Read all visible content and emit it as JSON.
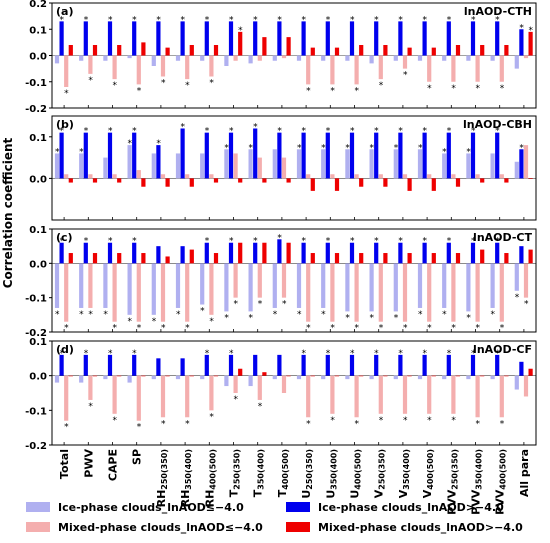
{
  "ylabel": "Correlation coefficient",
  "categories": [
    "Total",
    "PWV",
    "CAPE",
    "SP",
    "RH250(350)",
    "RH350(400)",
    "RH400(500)",
    "T250(350)",
    "T350(400)",
    "T400(500)",
    "U250(350)",
    "U350(400)",
    "U400(500)",
    "V250(350)",
    "V350(400)",
    "V400(500)",
    "PVV250(350)",
    "PVV350(400)",
    "PVV400(500)",
    "All para"
  ],
  "category_labels": [
    {
      "main": "Total",
      "sub": ""
    },
    {
      "main": "PWV",
      "sub": ""
    },
    {
      "main": "CAPE",
      "sub": ""
    },
    {
      "main": "SP",
      "sub": ""
    },
    {
      "main": "RH",
      "sub": "250(350)"
    },
    {
      "main": "RH",
      "sub": "350(400)"
    },
    {
      "main": "RH",
      "sub": "400(500)"
    },
    {
      "main": "T",
      "sub": "250(350)"
    },
    {
      "main": "T",
      "sub": "350(400)"
    },
    {
      "main": "T",
      "sub": "400(500)"
    },
    {
      "main": "U",
      "sub": "250(350)"
    },
    {
      "main": "U",
      "sub": "350(400)"
    },
    {
      "main": "U",
      "sub": "400(500)"
    },
    {
      "main": "V",
      "sub": "250(350)"
    },
    {
      "main": "V",
      "sub": "350(400)"
    },
    {
      "main": "V",
      "sub": "400(500)"
    },
    {
      "main": "PVV",
      "sub": "250(350)"
    },
    {
      "main": "PVV",
      "sub": "350(400)"
    },
    {
      "main": "PVV",
      "sub": "400(500)"
    },
    {
      "main": "All para",
      "sub": ""
    }
  ],
  "legend": [
    {
      "name": "Ice-phase clouds_lnAOD≤−4.0",
      "color": "#b0b0f0"
    },
    {
      "name": "Ice-phase clouds_lnAOD>−4.0",
      "color": "#0000ee"
    },
    {
      "name": "Mixed-phase clouds_lnAOD≤−4.0",
      "color": "#f4aeae"
    },
    {
      "name": "Mixed-phase clouds_lnAOD>−4.0",
      "color": "#ee0000"
    }
  ],
  "chart_data": [
    {
      "type": "bar",
      "panel": "(a)",
      "title": "lnAOD-CTH",
      "ylim": [
        -0.2,
        0.2
      ],
      "yticks": [
        "-0.2",
        "-0.1",
        "0.0",
        "0.1",
        "0.2"
      ],
      "series": [
        {
          "values": [
            -0.03,
            -0.02,
            -0.02,
            -0.01,
            -0.04,
            -0.02,
            -0.02,
            -0.04,
            -0.03,
            -0.02,
            -0.02,
            -0.02,
            -0.02,
            -0.03,
            -0.02,
            -0.02,
            -0.02,
            -0.02,
            -0.02,
            -0.05
          ],
          "stars": [
            false,
            false,
            false,
            false,
            false,
            false,
            false,
            false,
            false,
            false,
            false,
            false,
            false,
            false,
            false,
            false,
            false,
            false,
            false,
            false
          ]
        },
        {
          "values": [
            0.13,
            0.13,
            0.13,
            0.13,
            0.13,
            0.13,
            0.13,
            0.13,
            0.13,
            0.13,
            0.13,
            0.13,
            0.13,
            0.13,
            0.13,
            0.13,
            0.13,
            0.13,
            0.13,
            0.1
          ],
          "stars": [
            true,
            true,
            true,
            true,
            true,
            true,
            true,
            true,
            true,
            true,
            true,
            true,
            true,
            true,
            true,
            true,
            true,
            true,
            true,
            true
          ]
        },
        {
          "values": [
            -0.12,
            -0.07,
            -0.09,
            -0.11,
            -0.08,
            -0.09,
            -0.08,
            -0.02,
            -0.02,
            -0.01,
            -0.11,
            -0.11,
            -0.11,
            -0.09,
            -0.05,
            -0.1,
            -0.1,
            -0.1,
            -0.1,
            -0.01
          ],
          "stars": [
            true,
            true,
            true,
            true,
            true,
            true,
            true,
            false,
            false,
            false,
            true,
            true,
            true,
            true,
            true,
            true,
            true,
            true,
            true,
            false
          ]
        },
        {
          "values": [
            0.04,
            0.04,
            0.04,
            0.05,
            0.03,
            0.04,
            0.04,
            0.09,
            0.07,
            0.07,
            0.03,
            0.03,
            0.04,
            0.04,
            0.03,
            0.03,
            0.04,
            0.04,
            0.04,
            0.09
          ],
          "stars": [
            false,
            false,
            false,
            false,
            false,
            false,
            false,
            true,
            false,
            false,
            false,
            false,
            false,
            false,
            false,
            false,
            false,
            false,
            false,
            true
          ]
        }
      ]
    },
    {
      "type": "bar",
      "panel": "(b)",
      "title": "lnAOD-CBH",
      "ylim": [
        -0.1,
        0.15
      ],
      "yticks": [
        "0.0",
        "0.1"
      ],
      "series": [
        {
          "values": [
            0.06,
            0.06,
            0.05,
            0.08,
            0.06,
            0.06,
            0.06,
            0.07,
            0.07,
            0.07,
            0.07,
            0.07,
            0.07,
            0.07,
            0.07,
            0.07,
            0.06,
            0.06,
            0.06,
            0.04
          ],
          "stars": [
            true,
            true,
            false,
            true,
            false,
            false,
            false,
            true,
            true,
            false,
            true,
            true,
            true,
            true,
            true,
            true,
            true,
            true,
            false,
            false
          ]
        },
        {
          "values": [
            0.11,
            0.11,
            0.11,
            0.11,
            0.08,
            0.12,
            0.11,
            0.11,
            0.12,
            0.11,
            0.11,
            0.11,
            0.11,
            0.11,
            0.11,
            0.11,
            0.11,
            0.11,
            0.11,
            0.07
          ],
          "stars": [
            true,
            true,
            true,
            true,
            true,
            true,
            true,
            true,
            true,
            true,
            true,
            true,
            true,
            true,
            true,
            true,
            true,
            true,
            true,
            true
          ]
        },
        {
          "values": [
            0.01,
            0.01,
            0.01,
            0.02,
            0.01,
            0.01,
            0.01,
            0.06,
            0.05,
            0.05,
            0.01,
            0.01,
            0.01,
            0.01,
            0.01,
            0.01,
            0.01,
            0.01,
            0.01,
            0.08
          ],
          "stars": [
            false,
            false,
            false,
            false,
            false,
            false,
            false,
            false,
            false,
            false,
            false,
            false,
            false,
            false,
            false,
            false,
            false,
            false,
            false,
            false
          ]
        },
        {
          "values": [
            -0.01,
            -0.01,
            -0.01,
            -0.02,
            -0.02,
            -0.02,
            -0.01,
            -0.01,
            -0.01,
            -0.01,
            -0.03,
            -0.03,
            -0.02,
            -0.02,
            -0.03,
            -0.03,
            -0.02,
            -0.01,
            -0.01,
            0.0
          ],
          "stars": [
            false,
            false,
            false,
            false,
            false,
            false,
            false,
            false,
            false,
            false,
            false,
            false,
            false,
            false,
            false,
            false,
            false,
            false,
            false,
            false
          ]
        }
      ]
    },
    {
      "type": "bar",
      "panel": "(c)",
      "title": "lnAOD-CT",
      "ylim": [
        -0.2,
        0.1
      ],
      "yticks": [
        "-0.2",
        "-0.1",
        "0.0",
        "0.1"
      ],
      "series": [
        {
          "values": [
            -0.13,
            -0.13,
            -0.13,
            -0.15,
            -0.15,
            -0.13,
            -0.12,
            -0.14,
            -0.14,
            -0.13,
            -0.13,
            -0.13,
            -0.14,
            -0.14,
            -0.14,
            -0.13,
            -0.13,
            -0.14,
            -0.13,
            -0.08
          ],
          "stars": [
            true,
            true,
            true,
            true,
            true,
            true,
            true,
            true,
            true,
            true,
            true,
            true,
            true,
            true,
            true,
            true,
            true,
            true,
            true,
            true
          ]
        },
        {
          "values": [
            0.06,
            0.06,
            0.06,
            0.06,
            0.05,
            0.05,
            0.06,
            0.06,
            0.06,
            0.07,
            0.06,
            0.06,
            0.06,
            0.06,
            0.06,
            0.06,
            0.06,
            0.06,
            0.06,
            0.05
          ],
          "stars": [
            true,
            true,
            true,
            true,
            false,
            false,
            true,
            true,
            true,
            true,
            true,
            true,
            true,
            true,
            true,
            true,
            true,
            true,
            true,
            false
          ]
        },
        {
          "values": [
            -0.17,
            -0.13,
            -0.17,
            -0.17,
            -0.17,
            -0.17,
            -0.15,
            -0.1,
            -0.1,
            -0.1,
            -0.17,
            -0.17,
            -0.17,
            -0.17,
            -0.17,
            -0.17,
            -0.17,
            -0.17,
            -0.17,
            -0.1
          ],
          "stars": [
            true,
            true,
            true,
            true,
            true,
            true,
            true,
            true,
            true,
            true,
            true,
            true,
            true,
            true,
            true,
            true,
            true,
            true,
            true,
            true
          ]
        },
        {
          "values": [
            0.03,
            0.03,
            0.03,
            0.03,
            0.02,
            0.04,
            0.03,
            0.06,
            0.06,
            0.06,
            0.03,
            0.03,
            0.03,
            0.03,
            0.03,
            0.03,
            0.03,
            0.04,
            0.03,
            0.04
          ],
          "stars": [
            false,
            false,
            false,
            false,
            false,
            false,
            false,
            false,
            false,
            false,
            false,
            false,
            false,
            false,
            false,
            false,
            false,
            false,
            false,
            false
          ]
        }
      ]
    },
    {
      "type": "bar",
      "panel": "(d)",
      "title": "lnAOD-CF",
      "ylim": [
        -0.2,
        0.1
      ],
      "yticks": [
        "-0.2",
        "-0.1",
        "0.0",
        "0.1"
      ],
      "series": [
        {
          "values": [
            -0.02,
            -0.02,
            -0.01,
            -0.02,
            -0.01,
            -0.01,
            -0.01,
            -0.03,
            -0.03,
            -0.01,
            -0.01,
            -0.01,
            -0.01,
            -0.01,
            -0.01,
            -0.01,
            -0.01,
            -0.01,
            -0.01,
            -0.04
          ],
          "stars": [
            false,
            false,
            false,
            false,
            false,
            false,
            false,
            false,
            false,
            false,
            false,
            false,
            false,
            false,
            false,
            false,
            false,
            false,
            false,
            false
          ]
        },
        {
          "values": [
            0.06,
            0.06,
            0.06,
            0.06,
            0.05,
            0.05,
            0.06,
            0.06,
            0.06,
            0.06,
            0.06,
            0.06,
            0.06,
            0.06,
            0.06,
            0.06,
            0.06,
            0.06,
            0.06,
            0.04
          ],
          "stars": [
            true,
            true,
            true,
            true,
            false,
            false,
            true,
            true,
            false,
            false,
            true,
            true,
            true,
            true,
            true,
            true,
            true,
            true,
            true,
            false
          ]
        },
        {
          "values": [
            -0.13,
            -0.07,
            -0.11,
            -0.13,
            -0.12,
            -0.12,
            -0.1,
            -0.05,
            -0.07,
            -0.05,
            -0.12,
            -0.11,
            -0.12,
            -0.11,
            -0.11,
            -0.11,
            -0.11,
            -0.12,
            -0.12,
            -0.06
          ],
          "stars": [
            true,
            true,
            true,
            true,
            true,
            true,
            true,
            true,
            true,
            false,
            true,
            true,
            true,
            true,
            true,
            true,
            true,
            true,
            true,
            false
          ]
        },
        {
          "values": [
            0.0,
            0.0,
            0.0,
            0.0,
            0.0,
            0.0,
            0.0,
            0.02,
            0.01,
            0.0,
            0.0,
            0.0,
            0.0,
            0.0,
            0.0,
            0.0,
            0.0,
            0.0,
            0.0,
            0.02
          ],
          "stars": [
            false,
            false,
            false,
            false,
            false,
            false,
            false,
            false,
            false,
            false,
            false,
            false,
            false,
            false,
            false,
            false,
            false,
            false,
            false,
            false
          ]
        }
      ]
    }
  ]
}
